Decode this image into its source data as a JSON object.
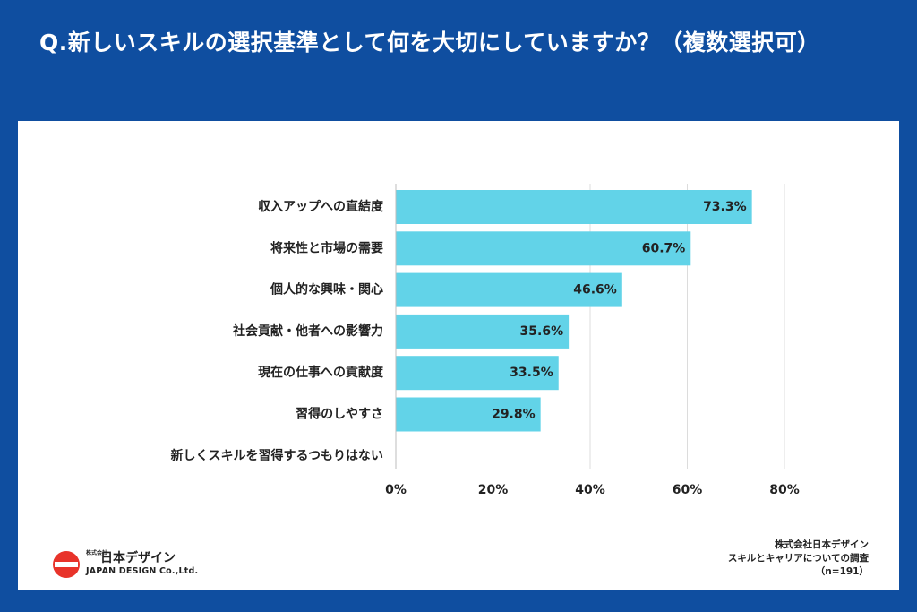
{
  "title": "Q.新しいスキルの選択基準として何を大切にしていますか？（複数選択可）",
  "logo": {
    "small_text": "株式会社",
    "name_jp": "日本デザイン",
    "name_en": "JAPAN DESIGN Co.,Ltd."
  },
  "source": {
    "line1": "株式会社日本デザイン",
    "line2": "スキルとキャリアについての調査",
    "line3": "（n=191）"
  },
  "colors": {
    "background": "#0f4ea0",
    "bar": "#62d3e8",
    "grid": "#dcdcdc",
    "logo_red": "#e8332a"
  },
  "chart_data": {
    "type": "bar",
    "orientation": "horizontal",
    "categories": [
      "収入アップへの直結度",
      "将来性と市場の需要",
      "個人的な興味・関心",
      "社会貢献・他者への影響力",
      "現在の仕事への貢献度",
      "習得のしやすさ",
      "新しくスキルを習得するつもりはない"
    ],
    "values": [
      73.3,
      60.7,
      46.6,
      35.6,
      33.5,
      29.8,
      0
    ],
    "value_labels": [
      "73.3%",
      "60.7%",
      "46.6%",
      "35.6%",
      "33.5%",
      "29.8%",
      ""
    ],
    "xlim": [
      0,
      80
    ],
    "xticks": [
      0,
      20,
      40,
      60,
      80
    ],
    "xtick_labels": [
      "0%",
      "20%",
      "40%",
      "60%",
      "80%"
    ],
    "title": "",
    "xlabel": "",
    "ylabel": "",
    "grid": true
  }
}
